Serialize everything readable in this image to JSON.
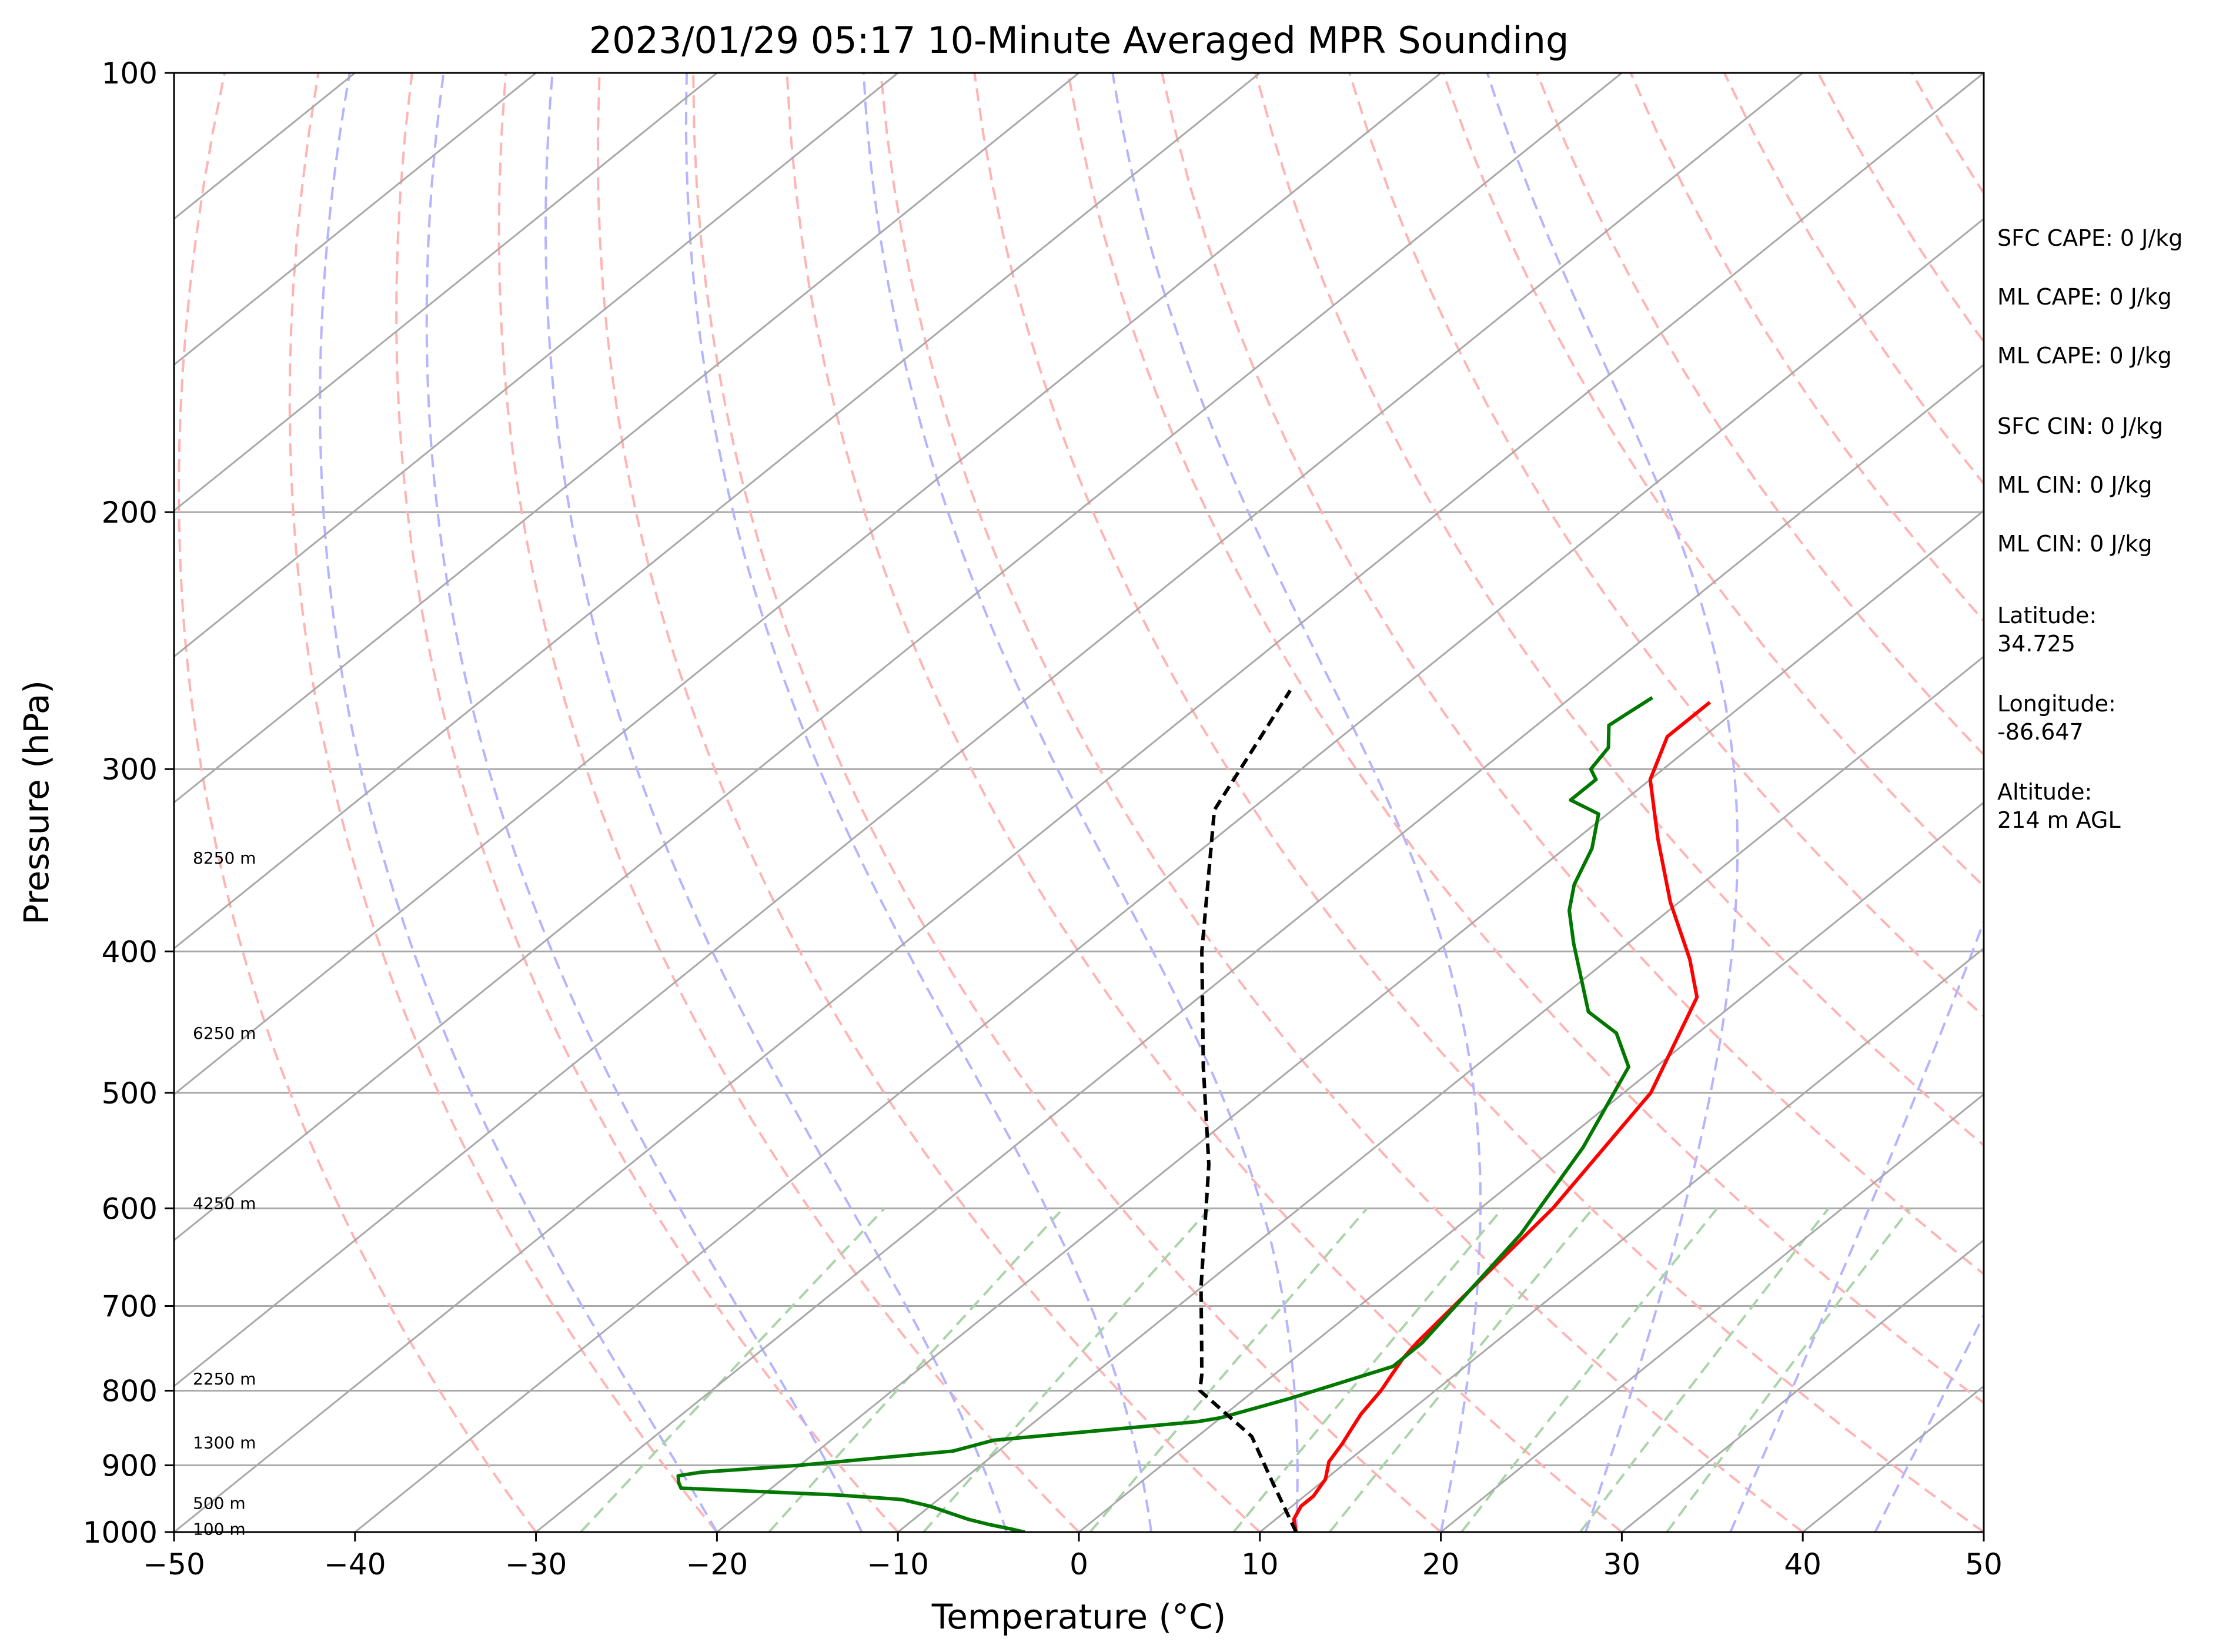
{
  "chart_data": {
    "type": "line",
    "title": "2023/01/29 05:17 10-Minute Averaged MPR Sounding",
    "xlabel": "Temperature (°C)",
    "ylabel": "Pressure (hPa)",
    "xlim": [
      -50,
      50
    ],
    "ylim": [
      1000,
      100
    ],
    "y_scale": "log",
    "grid": true,
    "x_ticks": [
      "−50",
      "−40",
      "−30",
      "−20",
      "−10",
      "0",
      "10",
      "20",
      "30",
      "40",
      "50"
    ],
    "y_ticks": [
      "100",
      "200",
      "300",
      "400",
      "500",
      "600",
      "700",
      "800",
      "900",
      "1000"
    ],
    "height_labels": [
      "8250 m",
      "6250 m",
      "4250 m",
      "2250 m",
      "1300 m",
      "500 m",
      "100 m"
    ],
    "colors": {
      "temperature": "#ff0000",
      "dewpoint": "#007800",
      "parcel": "#000000",
      "isotherm": "#a8a8a8",
      "dry_adiabat": "#ffb4b4",
      "moist_adiabat": "#b4b4ff",
      "mixing_ratio": "#a8d4a8"
    },
    "series": [
      {
        "key": "temperature",
        "points": [
          [
            12.0,
            1000
          ],
          [
            11.0,
            980
          ],
          [
            10.5,
            960
          ],
          [
            10.5,
            945
          ],
          [
            10.0,
            920
          ],
          [
            9.0,
            895
          ],
          [
            8.5,
            870
          ],
          [
            8.0,
            850
          ],
          [
            7.5,
            830
          ],
          [
            7.0,
            800
          ],
          [
            6.5,
            780
          ],
          [
            6.0,
            760
          ],
          [
            5.7,
            742
          ],
          [
            4.0,
            600
          ],
          [
            1.5,
            500
          ],
          [
            -2.5,
            430
          ],
          [
            -5.5,
            405
          ],
          [
            -10.5,
            370
          ],
          [
            -15.5,
            335
          ],
          [
            -20.0,
            305
          ],
          [
            -22.0,
            285
          ],
          [
            -22.0,
            270
          ]
        ]
      },
      {
        "key": "dewpoint",
        "points": [
          [
            -3.0,
            1000
          ],
          [
            -4.0,
            995
          ],
          [
            -5.5,
            988
          ],
          [
            -7.0,
            980
          ],
          [
            -8.5,
            970
          ],
          [
            -10.0,
            960
          ],
          [
            -12.0,
            950
          ],
          [
            -16.0,
            943
          ],
          [
            -25.0,
            933
          ],
          [
            -25.5,
            925
          ],
          [
            -26.0,
            915
          ],
          [
            -25.0,
            910
          ],
          [
            -20.0,
            900
          ],
          [
            -12.5,
            880
          ],
          [
            -11.0,
            865
          ],
          [
            -1.0,
            840
          ],
          [
            0.0,
            835
          ],
          [
            2.5,
            810
          ],
          [
            6.0,
            770
          ],
          [
            6.0,
            742
          ],
          [
            4.0,
            625
          ],
          [
            1.5,
            545
          ],
          [
            -1.5,
            480
          ],
          [
            -4.5,
            455
          ],
          [
            -7.5,
            440
          ],
          [
            -13.0,
            395
          ],
          [
            -15.5,
            375
          ],
          [
            -17.0,
            360
          ],
          [
            -18.5,
            340
          ],
          [
            -20.5,
            322
          ],
          [
            -23.0,
            315
          ],
          [
            -23.0,
            305
          ],
          [
            -24.0,
            300
          ],
          [
            -24.5,
            290
          ],
          [
            -26.0,
            280
          ],
          [
            -25.8,
            275
          ],
          [
            -25.5,
            268
          ]
        ]
      },
      {
        "key": "parcel",
        "points": [
          [
            12.0,
            1000
          ],
          [
            7.0,
            920
          ],
          [
            3.0,
            860
          ],
          [
            -3.0,
            800
          ],
          [
            -4.0,
            780
          ],
          [
            -6.0,
            745
          ],
          [
            -7.5,
            720
          ],
          [
            -10.0,
            680
          ],
          [
            -12.5,
            640
          ],
          [
            -18.0,
            560
          ],
          [
            -25.0,
            480
          ],
          [
            -33.0,
            400
          ],
          [
            -42.0,
            320
          ],
          [
            -46.0,
            265
          ]
        ]
      }
    ]
  },
  "side_panel": {
    "sfc_cape": "SFC CAPE: 0 J/kg",
    "ml_cape_1": "ML CAPE: 0 J/kg",
    "ml_cape_2": "ML CAPE: 0 J/kg",
    "sfc_cin": "SFC CIN: 0 J/kg",
    "ml_cin_1": "ML CIN: 0 J/kg",
    "ml_cin_2": "ML CIN: 0 J/kg",
    "latitude_label": "Latitude:",
    "latitude_value": "34.725",
    "longitude_label": "Longitude:",
    "longitude_value": "-86.647",
    "altitude_label": "Altitude:",
    "altitude_value": "214 m AGL"
  }
}
